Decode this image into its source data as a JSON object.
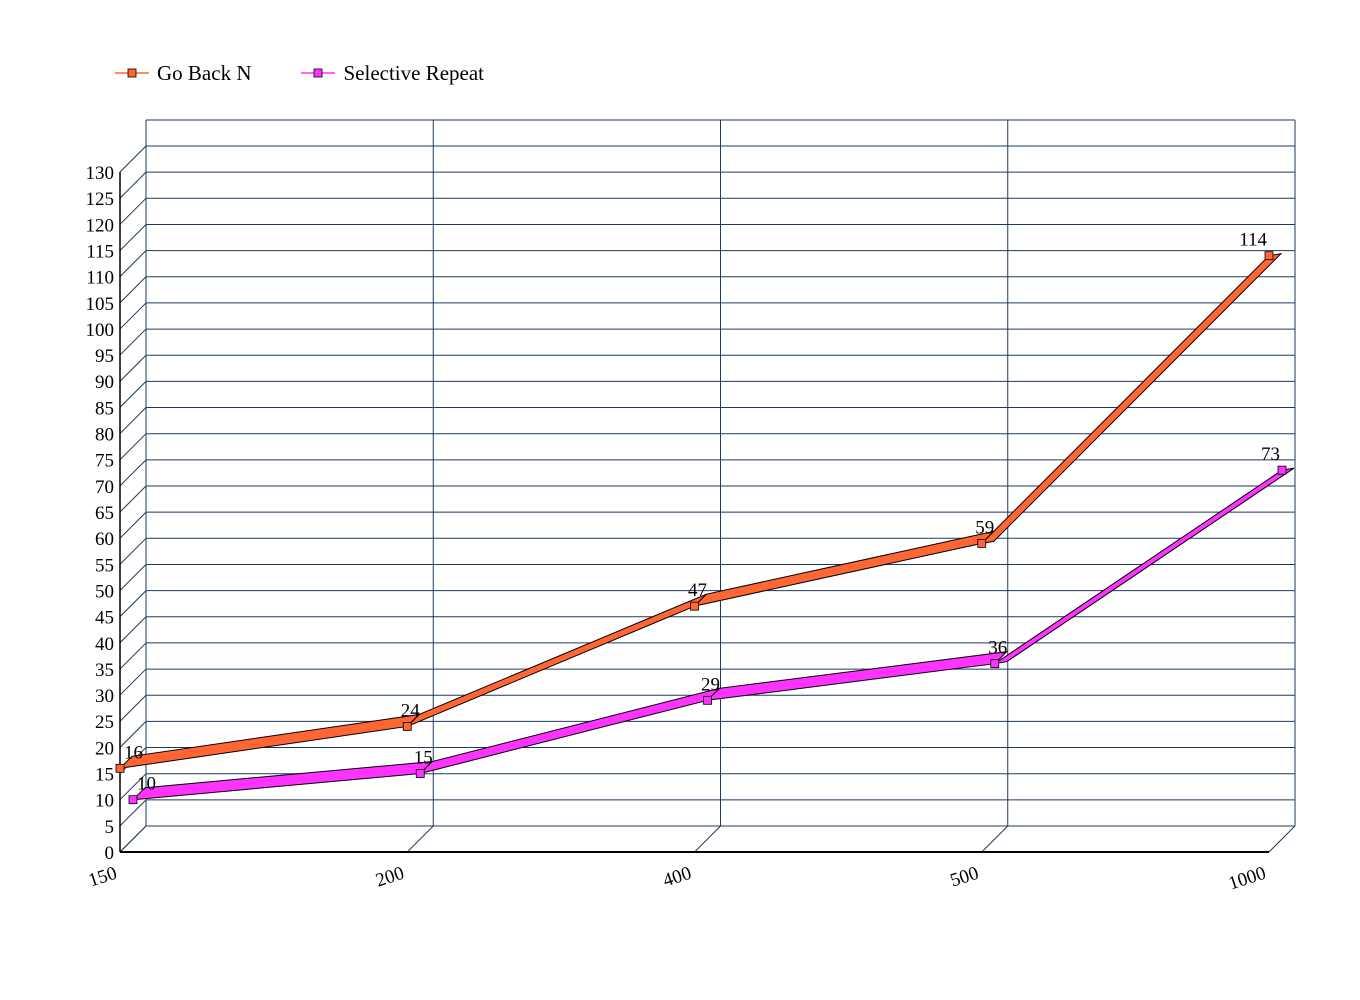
{
  "chart_data": {
    "type": "line",
    "title": "",
    "xlabel": "",
    "ylabel": "",
    "categories": [
      "150",
      "200",
      "400",
      "500",
      "1000"
    ],
    "ylim": [
      0,
      130
    ],
    "ytick_step": 5,
    "grid": true,
    "legend_position": "top-left",
    "series": [
      {
        "name": "Go Back N",
        "values": [
          16,
          24,
          47,
          59,
          114
        ],
        "color": "#ff6633",
        "marker": "square"
      },
      {
        "name": "Selective Repeat",
        "values": [
          10,
          15,
          29,
          36,
          73
        ],
        "color": "#ff33ff",
        "marker": "square"
      }
    ]
  }
}
